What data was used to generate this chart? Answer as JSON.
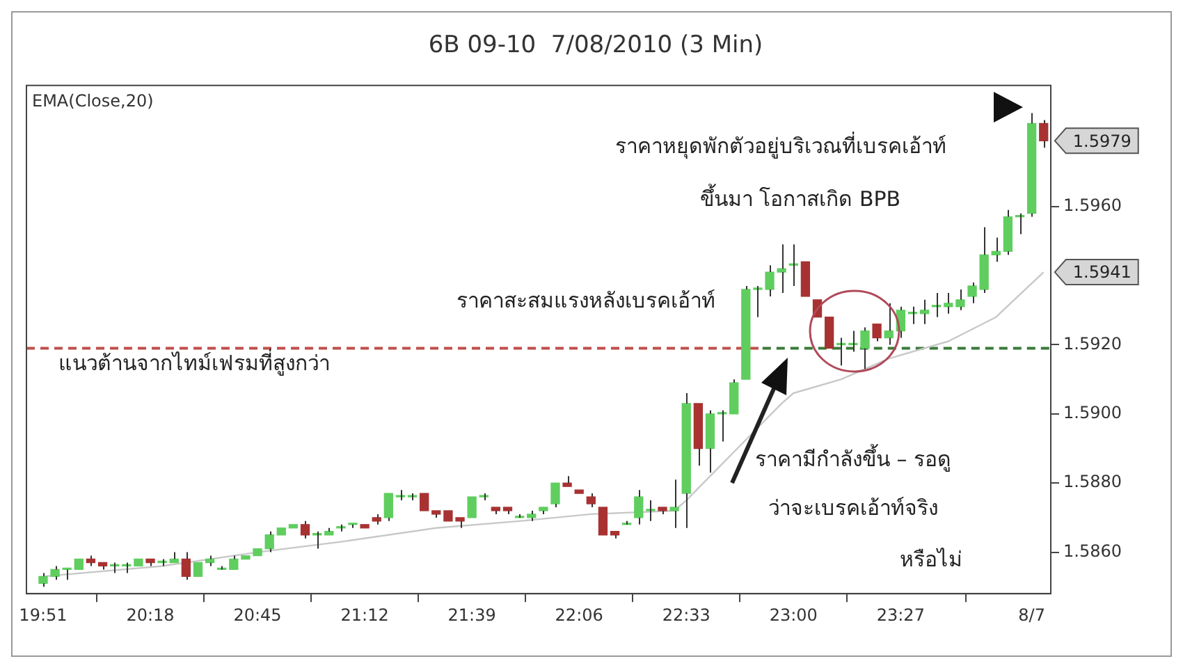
{
  "chart_data": {
    "type": "candlestick",
    "title": "6B 09-10  7/08/2010 (3 Min)",
    "x": [
      19.85,
      19.9,
      19.95,
      20,
      20.05,
      20.1,
      20.15,
      20.2,
      20.25,
      20.3,
      20.35,
      20.4,
      20.45,
      20.5,
      20.55,
      20.6,
      20.65,
      20.7,
      20.75,
      20.8,
      20.85,
      20.9,
      20.95,
      21,
      21.05,
      21.1,
      21.15,
      21.2,
      21.25,
      21.3,
      21.35,
      21.4,
      21.45,
      21.5,
      21.55,
      21.6,
      21.65,
      21.7,
      21.75,
      21.8,
      21.85,
      21.9,
      21.95,
      22,
      22.05,
      22.1,
      22.15,
      22.2,
      22.25,
      22.3,
      22.35,
      22.4,
      22.45,
      22.5,
      22.55,
      22.6,
      22.65,
      22.7,
      22.75,
      22.8,
      22.85,
      22.9,
      22.95,
      23,
      23.05,
      23.1,
      23.15,
      23.2,
      23.25,
      23.3,
      23.35,
      23.4,
      23.45,
      23.5,
      23.55,
      23.6,
      23.65,
      23.7,
      23.75,
      23.8,
      23.85,
      23.9,
      23.95,
      24,
      24.05
    ],
    "ohlc": [
      [
        1.5851,
        1.5854,
        1.585,
        1.5853
      ],
      [
        1.5853,
        1.5856,
        1.5852,
        1.5855
      ],
      [
        1.5855,
        1.5855,
        1.5852,
        1.5855
      ],
      [
        1.5855,
        1.5858,
        1.5855,
        1.5858
      ],
      [
        1.5858,
        1.5859,
        1.5856,
        1.5857
      ],
      [
        1.5857,
        1.5857,
        1.5855,
        1.5856
      ],
      [
        1.5856,
        1.5857,
        1.5854,
        1.5856
      ],
      [
        1.5856,
        1.5857,
        1.5854,
        1.5856
      ],
      [
        1.5856,
        1.5858,
        1.5856,
        1.5858
      ],
      [
        1.5858,
        1.5858,
        1.5856,
        1.5857
      ],
      [
        1.5857,
        1.5858,
        1.5856,
        1.5857
      ],
      [
        1.5857,
        1.586,
        1.5857,
        1.5858
      ],
      [
        1.5858,
        1.586,
        1.5852,
        1.5853
      ],
      [
        1.5853,
        1.5857,
        1.5853,
        1.5857
      ],
      [
        1.5857,
        1.5859,
        1.5856,
        1.5858
      ],
      [
        1.5855,
        1.5856,
        1.5855,
        1.5855
      ],
      [
        1.5855,
        1.5859,
        1.5855,
        1.5858
      ],
      [
        1.5858,
        1.5859,
        1.5858,
        1.5859
      ],
      [
        1.5859,
        1.5861,
        1.5859,
        1.5861
      ],
      [
        1.5861,
        1.5866,
        1.586,
        1.5865
      ],
      [
        1.5865,
        1.5867,
        1.5865,
        1.5867
      ],
      [
        1.5867,
        1.5868,
        1.5867,
        1.5868
      ],
      [
        1.5868,
        1.5869,
        1.5864,
        1.5865
      ],
      [
        1.5865,
        1.5866,
        1.5861,
        1.5865
      ],
      [
        1.5865,
        1.5867,
        1.5865,
        1.5866
      ],
      [
        1.5867,
        1.5868,
        1.5866,
        1.5867
      ],
      [
        1.5868,
        1.5868,
        1.5867,
        1.5868
      ],
      [
        1.5868,
        1.5868,
        1.5867,
        1.5867
      ],
      [
        1.587,
        1.5871,
        1.5868,
        1.5869
      ],
      [
        1.587,
        1.5877,
        1.5869,
        1.5877
      ],
      [
        1.5876,
        1.5878,
        1.5875,
        1.5876
      ],
      [
        1.5876,
        1.5877,
        1.5875,
        1.5876
      ],
      [
        1.5877,
        1.5877,
        1.5872,
        1.5872
      ],
      [
        1.5872,
        1.5872,
        1.587,
        1.5871
      ],
      [
        1.5872,
        1.5872,
        1.5869,
        1.5869
      ],
      [
        1.587,
        1.587,
        1.5867,
        1.5869
      ],
      [
        1.587,
        1.5876,
        1.587,
        1.5876
      ],
      [
        1.5876,
        1.5877,
        1.5875,
        1.5876
      ],
      [
        1.5873,
        1.5873,
        1.5871,
        1.5872
      ],
      [
        1.5873,
        1.5873,
        1.5871,
        1.5872
      ],
      [
        1.587,
        1.5871,
        1.587,
        1.587
      ],
      [
        1.587,
        1.5872,
        1.5869,
        1.5871
      ],
      [
        1.5872,
        1.5873,
        1.5871,
        1.5873
      ],
      [
        1.5874,
        1.588,
        1.5873,
        1.588
      ],
      [
        1.588,
        1.5882,
        1.5879,
        1.5879
      ],
      [
        1.5878,
        1.5878,
        1.5877,
        1.5877
      ],
      [
        1.5876,
        1.5877,
        1.5873,
        1.5874
      ],
      [
        1.5873,
        1.5873,
        1.5865,
        1.5865
      ],
      [
        1.5866,
        1.5866,
        1.5864,
        1.5865
      ],
      [
        1.5868,
        1.5869,
        1.5868,
        1.5868
      ],
      [
        1.587,
        1.5878,
        1.5868,
        1.5876
      ],
      [
        1.5872,
        1.5875,
        1.5869,
        1.5872
      ],
      [
        1.5873,
        1.5873,
        1.5871,
        1.5872
      ],
      [
        1.5872,
        1.5881,
        1.5867,
        1.5873
      ],
      [
        1.5877,
        1.5906,
        1.5867,
        1.5903
      ],
      [
        1.5903,
        1.5903,
        1.5885,
        1.589
      ],
      [
        1.589,
        1.5901,
        1.5883,
        1.59
      ],
      [
        1.59,
        1.5901,
        1.5892,
        1.59
      ],
      [
        1.59,
        1.591,
        1.59,
        1.5909
      ],
      [
        1.591,
        1.5937,
        1.591,
        1.5936
      ],
      [
        1.5936,
        1.5937,
        1.5928,
        1.5936
      ],
      [
        1.5936,
        1.5943,
        1.5934,
        1.5941
      ],
      [
        1.5941,
        1.5949,
        1.5935,
        1.5942
      ],
      [
        1.5943,
        1.5949,
        1.5937,
        1.5943
      ],
      [
        1.5944,
        1.5944,
        1.5934,
        1.5934
      ],
      [
        1.5933,
        1.5933,
        1.5928,
        1.5928
      ],
      [
        1.5928,
        1.5928,
        1.5919,
        1.5919
      ],
      [
        1.592,
        1.5922,
        1.5914,
        1.592
      ],
      [
        1.592,
        1.5924,
        1.5918,
        1.592
      ],
      [
        1.5919,
        1.5925,
        1.5913,
        1.5924
      ],
      [
        1.5926,
        1.5926,
        1.5921,
        1.5922
      ],
      [
        1.5922,
        1.5932,
        1.592,
        1.5924
      ],
      [
        1.5924,
        1.5931,
        1.5922,
        1.593
      ],
      [
        1.5929,
        1.5931,
        1.5926,
        1.5929
      ],
      [
        1.5929,
        1.5933,
        1.5926,
        1.593
      ],
      [
        1.5931,
        1.5935,
        1.5928,
        1.5931
      ],
      [
        1.5931,
        1.5935,
        1.5929,
        1.5932
      ],
      [
        1.5931,
        1.5936,
        1.593,
        1.5933
      ],
      [
        1.5934,
        1.5938,
        1.5932,
        1.5937
      ],
      [
        1.5936,
        1.5954,
        1.5935,
        1.5946
      ],
      [
        1.5946,
        1.5951,
        1.5944,
        1.5947
      ],
      [
        1.5947,
        1.5959,
        1.5946,
        1.5957
      ],
      [
        1.5957,
        1.5958,
        1.5952,
        1.5957
      ],
      [
        1.5958,
        1.5987,
        1.5957,
        1.5984
      ],
      [
        1.5984,
        1.5985,
        1.5977,
        1.5979
      ]
    ],
    "colors": [
      "#5fce5f",
      "#5fce5f",
      "#5fce5f",
      "#5fce5f",
      "#a83232",
      "#a83232",
      "#5fce5f",
      "#5fce5f",
      "#5fce5f",
      "#a83232",
      "#5fce5f",
      "#5fce5f",
      "#a83232",
      "#5fce5f",
      "#5fce5f",
      "#5fce5f",
      "#5fce5f",
      "#5fce5f",
      "#5fce5f",
      "#5fce5f",
      "#5fce5f",
      "#5fce5f",
      "#a83232",
      "#5fce5f",
      "#5fce5f",
      "#5fce5f",
      "#5fce5f",
      "#a83232",
      "#a83232",
      "#5fce5f",
      "#5fce5f",
      "#5fce5f",
      "#a83232",
      "#a83232",
      "#a83232",
      "#a83232",
      "#5fce5f",
      "#5fce5f",
      "#a83232",
      "#a83232",
      "#5fce5f",
      "#5fce5f",
      "#5fce5f",
      "#5fce5f",
      "#a83232",
      "#a83232",
      "#a83232",
      "#a83232",
      "#a83232",
      "#5fce5f",
      "#5fce5f",
      "#5fce5f",
      "#a83232",
      "#5fce5f",
      "#5fce5f",
      "#a83232",
      "#5fce5f",
      "#5fce5f",
      "#5fce5f",
      "#5fce5f",
      "#5fce5f",
      "#5fce5f",
      "#5fce5f",
      "#5fce5f",
      "#a83232",
      "#a83232",
      "#a83232",
      "#5fce5f",
      "#5fce5f",
      "#5fce5f",
      "#a83232",
      "#5fce5f",
      "#5fce5f",
      "#5fce5f",
      "#5fce5f",
      "#5fce5f",
      "#5fce5f",
      "#5fce5f",
      "#5fce5f",
      "#5fce5f",
      "#5fce5f",
      "#5fce5f",
      "#5fce5f",
      "#5fce5f",
      "#a83232"
    ],
    "series": [
      {
        "name": "EMA(Close,20)",
        "type": "line",
        "color": "#c8c8c8",
        "x": [
          19.85,
          20.35,
          20.75,
          21.1,
          21.5,
          21.85,
          22.15,
          22.5,
          22.55,
          22.75,
          22.95,
          23,
          23.2,
          23.4,
          23.65,
          23.85,
          24.05
        ],
        "values": [
          1.5853,
          1.5856,
          1.586,
          1.5863,
          1.5867,
          1.5869,
          1.5871,
          1.5872,
          1.5875,
          1.5889,
          1.5903,
          1.5906,
          1.591,
          1.5916,
          1.5921,
          1.5928,
          1.5941
        ]
      },
      {
        "type": "line",
        "color": "#c0504d",
        "line_style": "dashed",
        "x": [
          19.78,
          22.87
        ],
        "values": [
          1.5919,
          1.5919
        ]
      },
      {
        "type": "line",
        "color": "#3a7a3a",
        "line_style": "dashed",
        "x": [
          22.87,
          24.08
        ],
        "values": [
          1.5919,
          1.5919
        ]
      }
    ],
    "xlim": [
      19.78,
      24.08
    ],
    "xticks": [
      {
        "value": 19.85,
        "label": "19:51"
      },
      {
        "value": 20.3,
        "label": "20:18"
      },
      {
        "value": 20.75,
        "label": "20:45"
      },
      {
        "value": 21.2,
        "label": "21:12"
      },
      {
        "value": 21.65,
        "label": "21:39"
      },
      {
        "value": 22.1,
        "label": "22:06"
      },
      {
        "value": 22.55,
        "label": "22:33"
      },
      {
        "value": 23,
        "label": "23:00"
      },
      {
        "value": 23.45,
        "label": "23:27"
      },
      {
        "value": 24,
        "label": "8/7"
      }
    ],
    "ylim": [
      1.5848,
      1.5995
    ],
    "yticks": [
      {
        "value": 1.586,
        "label": "1.5860"
      },
      {
        "value": 1.588,
        "label": "1.5880"
      },
      {
        "value": 1.59,
        "label": "1.5900"
      },
      {
        "value": 1.592,
        "label": "1.5920"
      },
      {
        "value": 1.596,
        "label": "1.5960"
      }
    ],
    "annotations": [
      "ราคาหยุดพักตัวอยู่บริเวณที่เบรคเอ้าท์",
      "ขึ้นมา โอกาสเกิด BPB",
      "ราคาสะสมแรงหลังเบรคเอ้าท์",
      "แนวต้านจากไทม์เฟรมที่สูงกว่า",
      "ราคามีกำลังขึ้น – รอดู",
      "ว่าจะเบรคเอ้าท์จริง",
      "หรือไม่",
      {
        "text": "1.5979",
        "x": 24.05,
        "y": 1.5979
      },
      {
        "text": "1.5941",
        "x": 24.05,
        "y": 1.5941
      }
    ],
    "legend": "top left",
    "marker": "none",
    "grid": false
  }
}
